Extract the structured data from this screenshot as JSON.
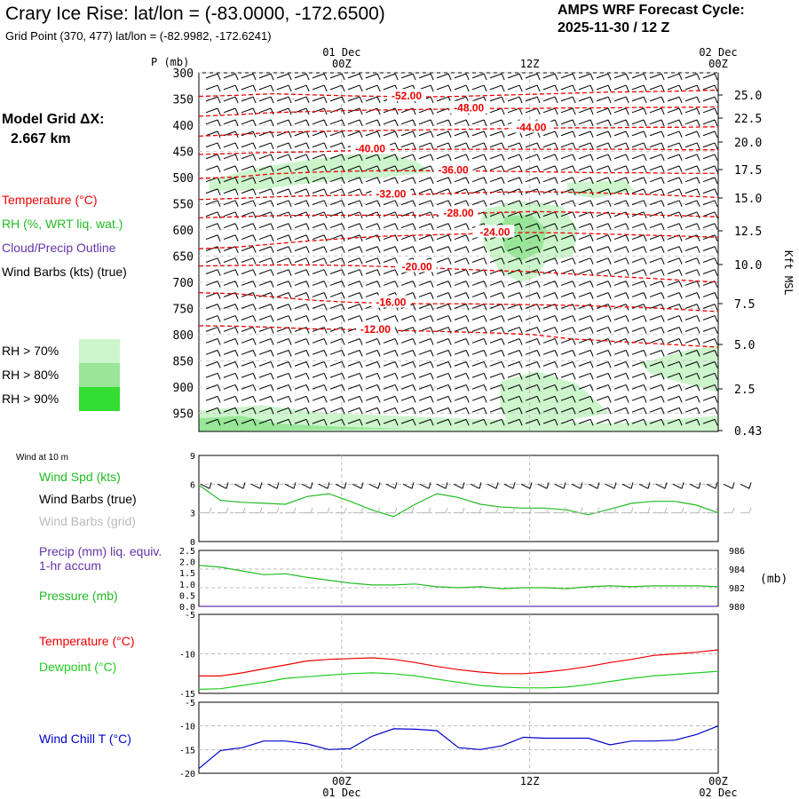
{
  "header": {
    "title": "Crary Ice Rise:  lat/lon = (-83.0000, -172.6500)",
    "subtitle": "Grid Point (370, 477) lat/lon = (-82.9982, -172.6241)",
    "cycle_line1": "AMPS WRF Forecast Cycle:",
    "cycle_line2": "2025-11-30 / 12  Z"
  },
  "sidebar": {
    "model_grid_label": "Model Grid ΔX:",
    "model_grid_value": "2.667 km",
    "legend_temperature": "Temperature (°C)",
    "legend_rh": "RH (%, WRT liq. wat.)",
    "legend_cloud": "Cloud/Precip Outline",
    "legend_wind": "Wind Barbs (kts) (true)",
    "rh_bins": [
      {
        "label": "RH > 70%",
        "color": "#ccf5cc"
      },
      {
        "label": "RH > 80%",
        "color": "#99e699"
      },
      {
        "label": "RH > 90%",
        "color": "#33dd33"
      }
    ]
  },
  "colors": {
    "temperature": "#ee0000",
    "rh": "#22bb22",
    "cloud": "#6633aa",
    "wind": "#000000",
    "wind_grid": "#bbbbbb",
    "pressure": "#22bb22",
    "dewpoint": "#22cc22",
    "windchill": "#0000cc"
  },
  "time_axis": {
    "top_labels": [
      {
        "date": "01 Dec",
        "hour": "00Z"
      },
      {
        "date": "",
        "hour": "12Z"
      },
      {
        "date": "02 Dec",
        "hour": "00Z"
      }
    ],
    "bottom_labels": [
      {
        "hour": "00Z",
        "date": "01 Dec"
      },
      {
        "hour": "12Z",
        "date": ""
      },
      {
        "hour": "00Z",
        "date": "02 Dec"
      }
    ]
  },
  "chart_data": [
    {
      "type": "heatmap",
      "panel": "Vertical time-section",
      "xlabel": "",
      "ylabel": "P (mb)",
      "y2label": "Kft MSL",
      "pressure_ticks": [
        "300",
        "350",
        "400",
        "450",
        "500",
        "550",
        "600",
        "650",
        "700",
        "750",
        "800",
        "850",
        "900",
        "950"
      ],
      "height_ticks_kft": [
        "25.0",
        "22.5",
        "20.0",
        "17.5",
        "15.0",
        "12.5",
        "10.0",
        "7.5",
        "5.0",
        "2.5",
        "0.43"
      ],
      "isotherms_c": [
        "-52.00",
        "-48.00",
        "-44.00",
        "-40.00",
        "-36.00",
        "-32.00",
        "-28.00",
        "-24.00",
        "-20.00",
        "-16.00",
        "-12.00"
      ],
      "isotherm_levels_mb": [
        [
          345,
          343,
          340,
          342,
          344,
          345,
          346,
          345,
          343,
          341,
          339,
          337,
          336,
          335,
          333
        ],
        [
          383,
          380,
          376,
          374,
          372,
          371,
          370,
          369,
          368,
          368,
          367,
          367,
          366,
          366,
          365
        ],
        [
          421,
          418,
          414,
          412,
          411,
          410,
          409,
          408,
          407,
          406,
          405,
          405,
          404,
          404,
          403
        ],
        [
          456,
          454,
          452,
          451,
          449,
          447,
          446,
          446,
          446,
          446,
          446,
          446,
          446,
          447,
          447
        ],
        [
          502,
          499,
          493,
          490,
          488,
          487,
          487,
          487,
          488,
          489,
          490,
          491,
          491,
          492,
          492
        ],
        [
          542,
          540,
          537,
          535,
          534,
          533,
          532,
          530,
          528,
          527,
          528,
          530,
          532,
          535,
          538
        ],
        [
          577,
          575,
          573,
          572,
          572,
          572,
          572,
          570,
          567,
          565,
          566,
          568,
          571,
          573,
          575
        ],
        [
          636,
          633,
          627,
          621,
          616,
          612,
          610,
          608,
          606,
          605,
          606,
          608,
          610,
          612,
          614
        ],
        [
          669,
          668,
          667,
          667,
          668,
          670,
          672,
          675,
          678,
          680,
          684,
          688,
          692,
          696,
          700
        ],
        [
          720,
          722,
          728,
          734,
          738,
          740,
          741,
          741,
          742,
          743,
          744,
          746,
          748,
          752,
          756
        ],
        [
          783,
          784,
          786,
          789,
          790,
          792,
          793,
          795,
          797,
          800,
          808,
          812,
          816,
          820,
          824
        ]
      ],
      "series": [
        {
          "name": "Temperature (°C)"
        },
        {
          "name": "RH (%, WRT liq. wat.)"
        },
        {
          "name": "Wind Barbs (kts) (true)"
        }
      ]
    },
    {
      "type": "line",
      "panel": "Wind at 10 m",
      "title": "Wind at 10 m",
      "ylim": [
        0,
        9
      ],
      "yticks": [
        "0",
        "3",
        "6",
        "9"
      ],
      "series": [
        {
          "name": "Wind Spd (kts)",
          "values": [
            5.9,
            4.3,
            4.1,
            4.0,
            3.9,
            4.7,
            5.0,
            4.2,
            3.3,
            2.6,
            3.9,
            5.0,
            4.6,
            3.9,
            3.6,
            3.5,
            3.5,
            3.3,
            2.8,
            3.4,
            4.0,
            4.2,
            4.2,
            3.8,
            3.0
          ]
        },
        {
          "name": "Wind Barbs (true)"
        },
        {
          "name": "Wind Barbs (grid)"
        }
      ]
    },
    {
      "type": "line",
      "panel": "Precip / Pressure",
      "yticks_left": [
        "0.0",
        "0.5",
        "1.0",
        "1.5",
        "2.0",
        "2.5"
      ],
      "yticks_right": [
        "980",
        "982",
        "984",
        "986"
      ],
      "y2label": "(mb)",
      "ylim": [
        0,
        2.5
      ],
      "y2lim": [
        980,
        986
      ],
      "series": [
        {
          "name": "Precip (mm) liq. equiv. 1-hr accum",
          "values": [
            0,
            0,
            0,
            0,
            0,
            0,
            0,
            0,
            0,
            0,
            0,
            0,
            0,
            0,
            0,
            0,
            0,
            0,
            0,
            0,
            0,
            0,
            0,
            0,
            0
          ]
        },
        {
          "name": "Pressure (mb)",
          "values": [
            984.4,
            984.2,
            983.8,
            983.4,
            983.5,
            983.1,
            982.8,
            982.5,
            982.3,
            982.3,
            982.4,
            982.1,
            982.0,
            982.1,
            981.9,
            982.0,
            982.0,
            981.9,
            982.1,
            982.2,
            982.1,
            982.2,
            982.2,
            982.2,
            982.1
          ]
        }
      ]
    },
    {
      "type": "line",
      "panel": "Temperature / Dewpoint",
      "ylim": [
        -15,
        -5
      ],
      "yticks": [
        "-15",
        "-10",
        "-5"
      ],
      "series": [
        {
          "name": "Temperature (°C)",
          "values": [
            -12.8,
            -12.8,
            -12.4,
            -11.9,
            -11.4,
            -10.9,
            -10.7,
            -10.6,
            -10.5,
            -10.7,
            -11.1,
            -11.6,
            -12.0,
            -12.3,
            -12.5,
            -12.5,
            -12.3,
            -12.0,
            -11.6,
            -11.1,
            -10.7,
            -10.2,
            -10.0,
            -9.8,
            -9.5
          ]
        },
        {
          "name": "Dewpoint (°C)",
          "values": [
            -14.5,
            -14.4,
            -14.0,
            -13.6,
            -13.1,
            -12.9,
            -12.7,
            -12.5,
            -12.4,
            -12.5,
            -12.8,
            -13.2,
            -13.6,
            -14.0,
            -14.2,
            -14.3,
            -14.3,
            -14.2,
            -13.9,
            -13.5,
            -13.1,
            -12.8,
            -12.6,
            -12.4,
            -12.2
          ]
        }
      ]
    },
    {
      "type": "line",
      "panel": "Wind Chill",
      "ylim": [
        -20,
        -5
      ],
      "yticks": [
        "-20",
        "-15",
        "-10",
        "-5"
      ],
      "series": [
        {
          "name": "Wind Chill T (°C)",
          "values": [
            -19.0,
            -15.2,
            -14.6,
            -13.2,
            -13.2,
            -13.8,
            -15.0,
            -14.8,
            -12.2,
            -10.6,
            -10.7,
            -11.0,
            -14.6,
            -15.0,
            -14.2,
            -12.4,
            -12.6,
            -12.6,
            -12.6,
            -14.0,
            -13.2,
            -13.2,
            -13.0,
            -11.8,
            -10.0
          ]
        }
      ]
    }
  ]
}
